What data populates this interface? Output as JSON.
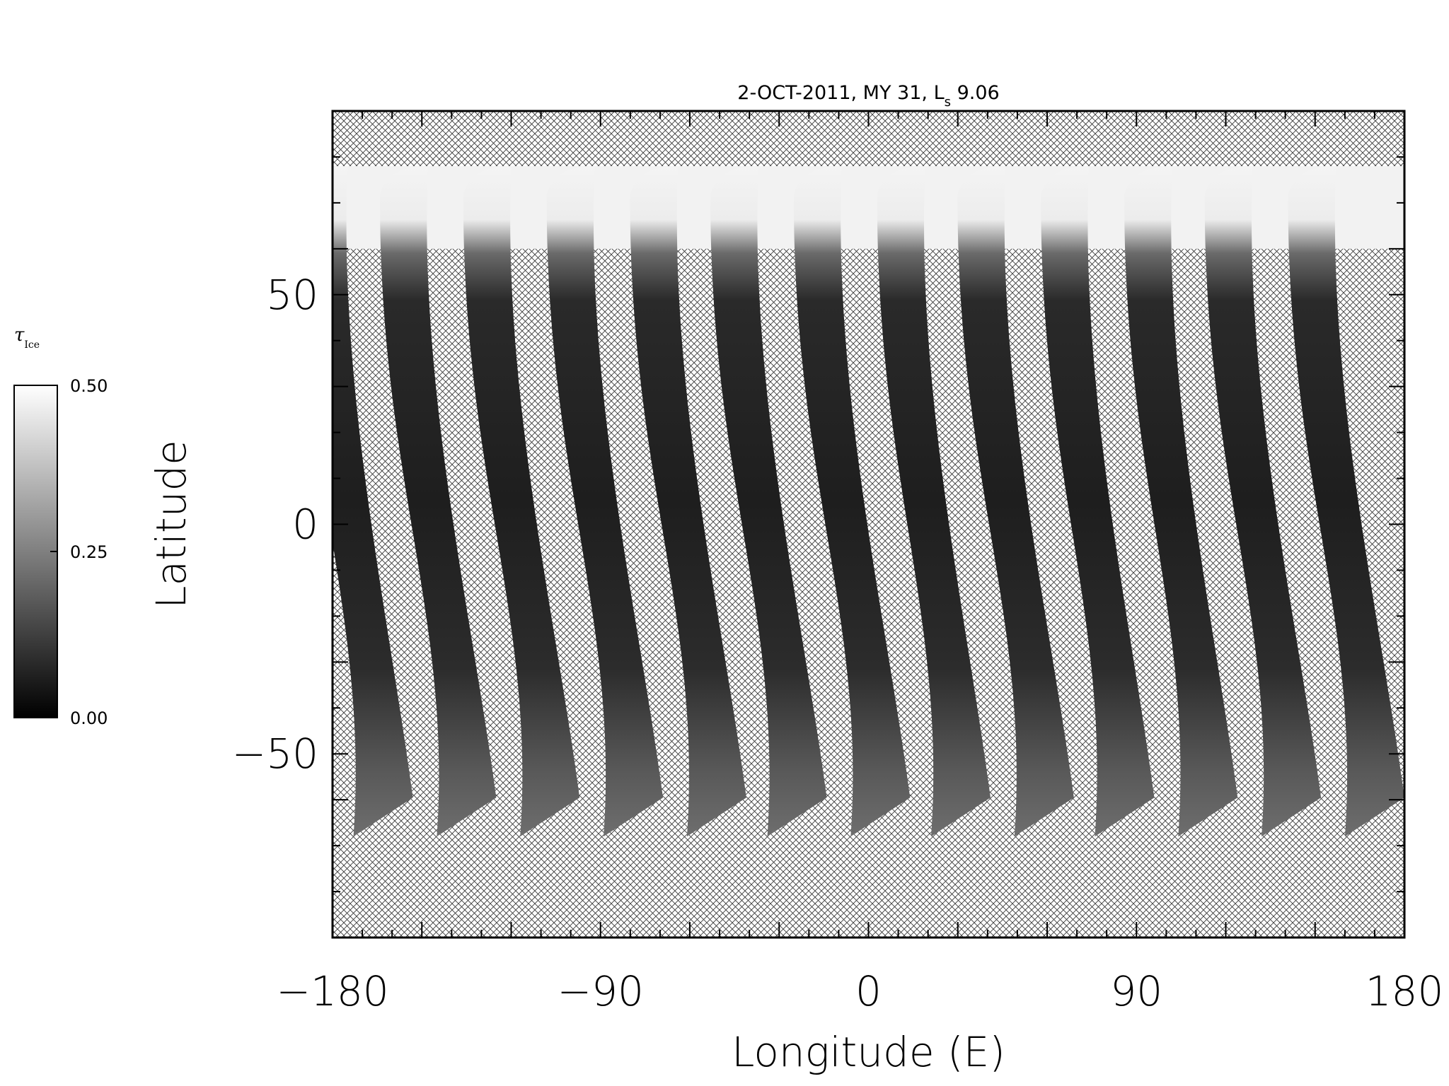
{
  "chart_data": {
    "type": "heatmap",
    "title": "2-OCT-2011, MY 31,  L",
    "title_sub": "s",
    "title_tail": " 9.06",
    "xlabel": "Longitude (E)",
    "ylabel": "Latitude",
    "xlim": [
      -180,
      180
    ],
    "ylim": [
      -90,
      90
    ],
    "x_ticks": [
      -180,
      -90,
      0,
      90,
      180
    ],
    "x_tick_labels": [
      "−180",
      "−90",
      "0",
      "90",
      "180"
    ],
    "y_ticks": [
      -50,
      0,
      50
    ],
    "y_tick_labels": [
      "−50",
      "0",
      "50"
    ],
    "x_minor_step": 10,
    "y_minor_step": 10,
    "no_data_pattern": "crosshatch",
    "colorbar": {
      "title": "τ",
      "title_sub": "Ice",
      "range": [
        0.0,
        0.5
      ],
      "tick_values": [
        0.0,
        0.25,
        0.5
      ],
      "tick_labels": [
        "0.00",
        "0.25",
        "0.50"
      ],
      "colormap": "grayscale",
      "low_color": "#000000",
      "high_color": "#ffffff"
    },
    "swaths": [
      {
        "lon_north": -183,
        "lon_south": -163
      },
      {
        "lon_north": -156,
        "lon_south": -135
      },
      {
        "lon_north": -128,
        "lon_south": -107
      },
      {
        "lon_north": -100,
        "lon_south": -79
      },
      {
        "lon_north": -72,
        "lon_south": -51
      },
      {
        "lon_north": -45,
        "lon_south": -24
      },
      {
        "lon_north": -17,
        "lon_south": 4
      },
      {
        "lon_north": 11,
        "lon_south": 31
      },
      {
        "lon_north": 38,
        "lon_south": 59
      },
      {
        "lon_north": 66,
        "lon_south": 86
      },
      {
        "lon_north": 94,
        "lon_south": 114
      },
      {
        "lon_north": 121,
        "lon_south": 142
      },
      {
        "lon_north": 149,
        "lon_south": 170
      }
    ],
    "swath_lat_range": [
      -68,
      78
    ]
  }
}
